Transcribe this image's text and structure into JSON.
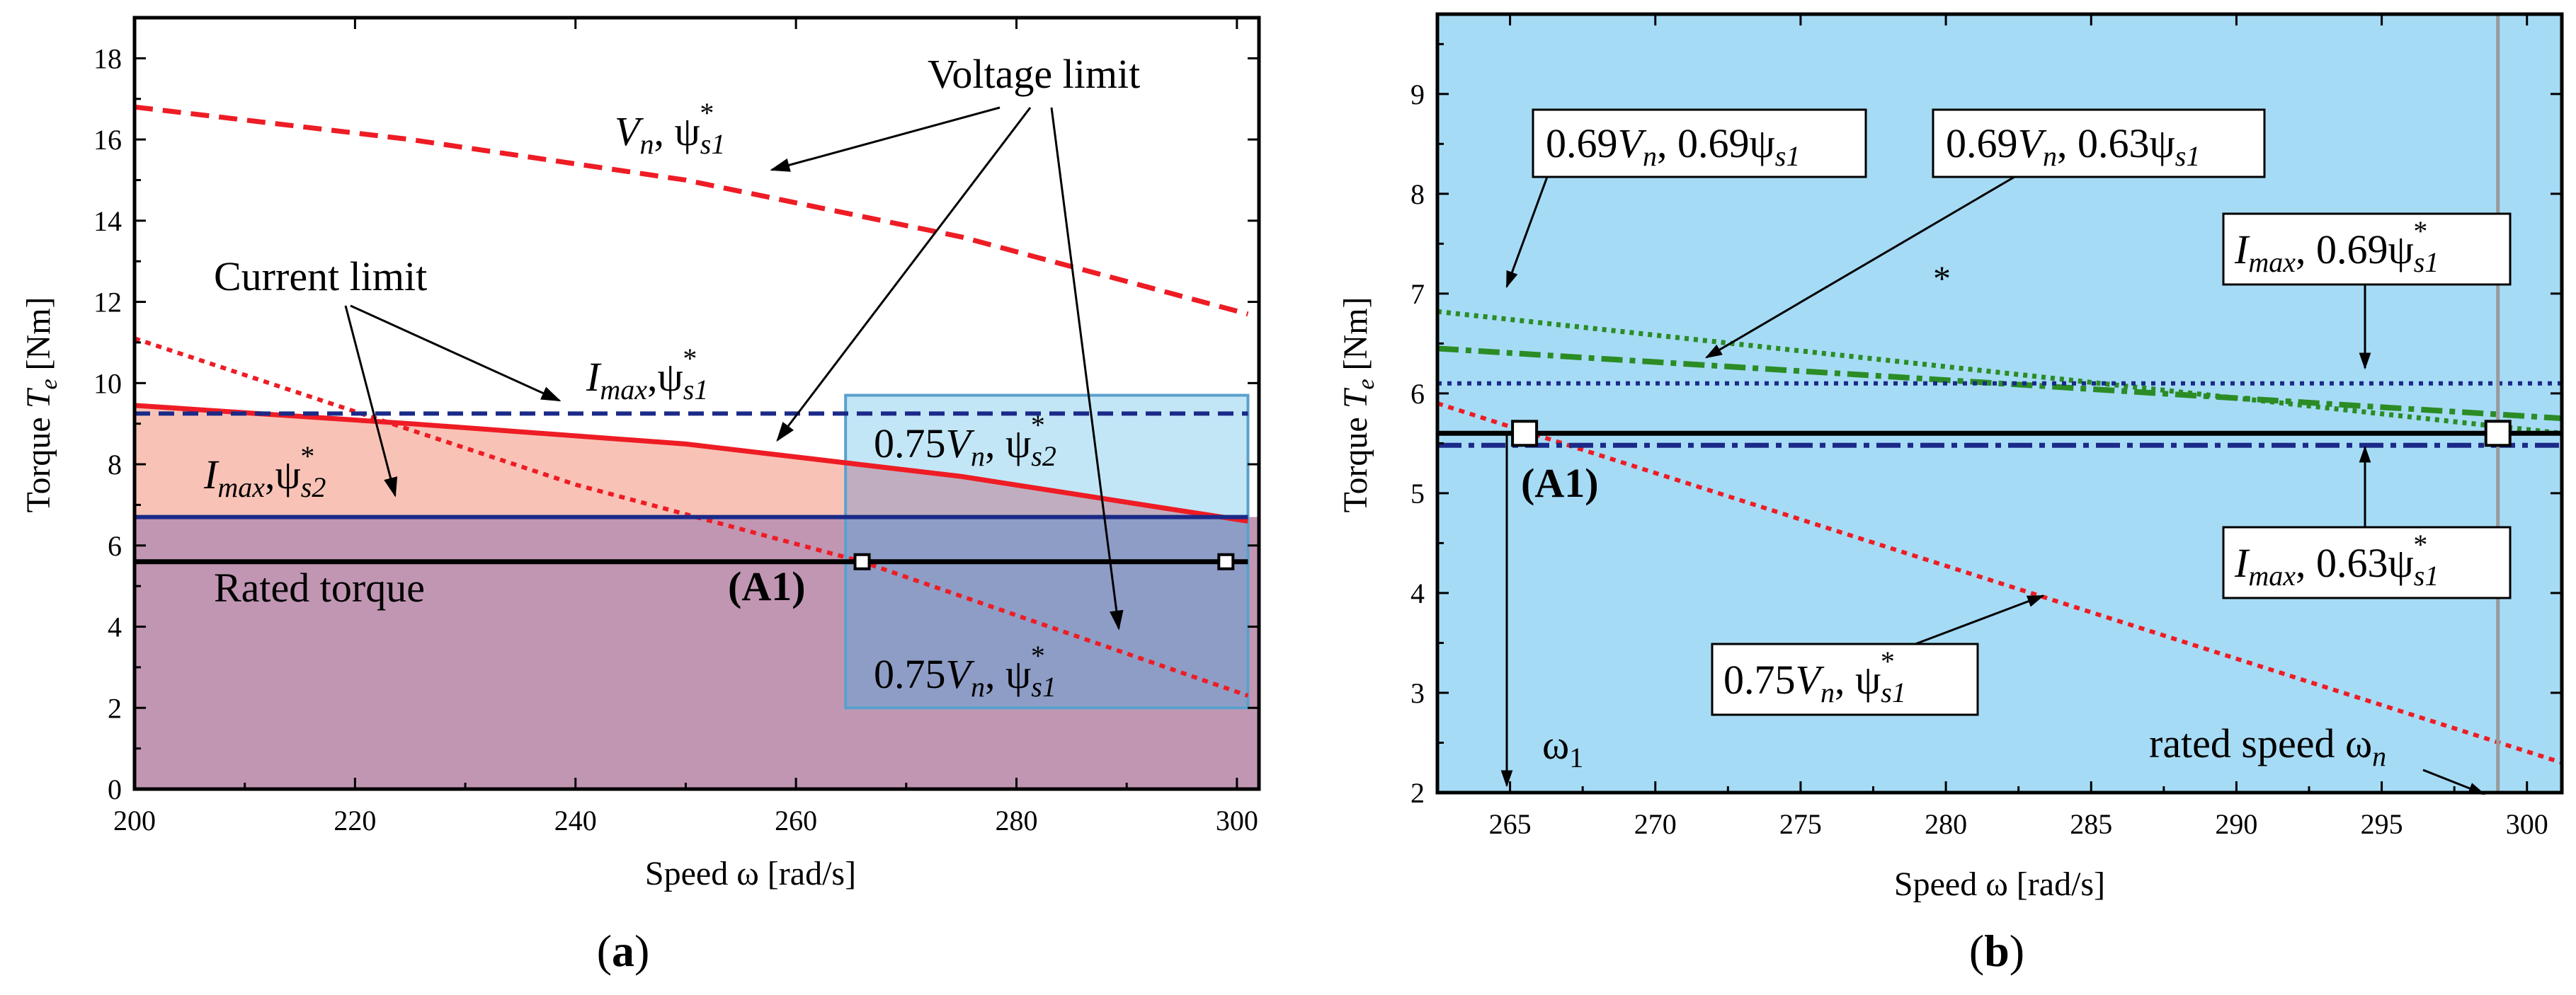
{
  "colors": {
    "panel_b_bg": "#a6dbf5",
    "fill_top": "#f8c3b6",
    "fill_bottom": "#c196b3",
    "inset_fill": "#8e9dc6",
    "inset_top_fill": "#c2e6f6",
    "inset_border": "#5aa1cd",
    "red": "#ee1c24",
    "navy": "#1b2a88",
    "green": "#2b8c25",
    "black": "#000000",
    "gray": "#9a9a9a"
  },
  "chart_data": [
    {
      "panel": "a",
      "panel_label": "(a)",
      "type": "line",
      "xlabel": "Speed ω [rad/s]",
      "ylabel": "Torque Te [Nm]",
      "xlim": [
        200,
        302
      ],
      "ylim": [
        0,
        19
      ],
      "xticks": [
        "200",
        "220",
        "240",
        "260",
        "280",
        "300"
      ],
      "yticks": [
        "0",
        "2",
        "4",
        "6",
        "8",
        "10",
        "12",
        "14",
        "16",
        "18"
      ],
      "series": [
        {
          "name": "Vn, ψs1*",
          "style": "red-dashed",
          "x": [
            200,
            225,
            250,
            275,
            301
          ],
          "y": [
            16.8,
            16.0,
            15.0,
            13.6,
            11.7
          ]
        },
        {
          "name": "0.75Vn, ψs1*",
          "style": "red-dotted",
          "x": [
            200,
            240,
            266,
            301
          ],
          "y": [
            11.1,
            7.5,
            5.6,
            2.3
          ]
        },
        {
          "name": "0.75Vn, ψs2*",
          "style": "red-solid",
          "x": [
            200,
            225,
            250,
            275,
            301
          ],
          "y": [
            9.45,
            9.0,
            8.5,
            7.7,
            6.6
          ]
        },
        {
          "name": "Imax, ψs1*",
          "style": "navy-dashed",
          "x": [
            200,
            301
          ],
          "y": [
            9.25,
            9.25
          ]
        },
        {
          "name": "Imax, ψs2*",
          "style": "navy-solid",
          "x": [
            200,
            301
          ],
          "y": [
            6.7,
            6.7
          ]
        },
        {
          "name": "Rated torque",
          "style": "black-solid",
          "x": [
            200,
            301
          ],
          "y": [
            5.6,
            5.6
          ]
        }
      ],
      "points": [
        {
          "name": "A1",
          "x": 266,
          "y": 5.6
        },
        {
          "name": "rated",
          "x": 299,
          "y": 5.6
        }
      ],
      "inset_box": {
        "x": [
          264.5,
          301
        ],
        "y": [
          2.0,
          9.7
        ]
      },
      "annotations": {
        "voltage_limit": "Voltage limit",
        "current_limit": "Current limit",
        "rated_torque": "Rated torque",
        "a1": "(A1)",
        "vn_psi1": {
          "main": "V",
          "sub": "n",
          "mid": ", ψ",
          "sub2": "s1",
          "sup": "*"
        },
        "imax_psi1": {
          "main": "I",
          "sub": "max",
          "mid": ",ψ",
          "sub2": "s1",
          "sup": "*"
        },
        "imax_psi2": {
          "main": "I",
          "sub": "max",
          "mid": ",ψ",
          "sub2": "s2",
          "sup": "*"
        },
        "v075_psi2": {
          "pre": "0.75",
          "main": "V",
          "sub": "n",
          "mid": ", ψ",
          "sub2": "s2",
          "sup": "*"
        },
        "v075_psi1": {
          "pre": "0.75",
          "main": "V",
          "sub": "n",
          "mid": ", ψ",
          "sub2": "s1",
          "sup": "*"
        }
      }
    },
    {
      "panel": "b",
      "panel_label": "(b)",
      "type": "line",
      "xlabel": "Speed ω [rad/s]",
      "ylabel": "Torque Te [Nm]",
      "xlim": [
        262.5,
        301.2
      ],
      "ylim": [
        2,
        9.8
      ],
      "xticks": [
        "265",
        "270",
        "275",
        "280",
        "285",
        "290",
        "295",
        "300"
      ],
      "yticks": [
        "2",
        "3",
        "4",
        "5",
        "6",
        "7",
        "8",
        "9"
      ],
      "series": [
        {
          "name": "0.75Vn, ψs1*",
          "style": "red-dotted",
          "x": [
            262.5,
            301.2
          ],
          "y": [
            5.9,
            2.3
          ]
        },
        {
          "name": "0.69Vn, 0.69ψs1",
          "style": "green-dotted",
          "x": [
            262.5,
            301.2
          ],
          "y": [
            6.82,
            5.6
          ]
        },
        {
          "name": "0.69Vn, 0.63ψs1",
          "style": "green-dashdot",
          "x": [
            262.5,
            301.2
          ],
          "y": [
            6.45,
            5.75
          ]
        },
        {
          "name": "Imax, 0.69ψs1*",
          "style": "navy-dotted",
          "x": [
            262.5,
            301.2
          ],
          "y": [
            6.1,
            6.1
          ]
        },
        {
          "name": "Imax, 0.63ψs1*",
          "style": "navy-dashdot",
          "x": [
            262.5,
            301.2
          ],
          "y": [
            5.48,
            5.48
          ]
        },
        {
          "name": "Rated torque",
          "style": "black-solid",
          "x": [
            262.5,
            301.2
          ],
          "y": [
            5.6,
            5.6
          ]
        },
        {
          "name": "rated speed",
          "style": "gray-vertical",
          "x": [
            299,
            299
          ],
          "y": [
            2,
            9.8
          ]
        }
      ],
      "points": [
        {
          "name": "A1",
          "x": 265.5,
          "y": 5.6
        },
        {
          "name": "rated",
          "x": 299,
          "y": 5.6
        }
      ],
      "annotations": {
        "a1": "(A1)",
        "omega1": {
          "main": "ω",
          "sub": "1"
        },
        "rated_speed": {
          "main": "rated speed ω",
          "sub": "n"
        },
        "asterisk": "*",
        "box1": {
          "pre": "0.69",
          "main": "V",
          "sub": "n",
          "mid": ", 0.69ψ",
          "sub2": "s1"
        },
        "box2": {
          "pre": "0.69",
          "main": "V",
          "sub": "n",
          "mid": ", 0.63ψ",
          "sub2": "s1"
        },
        "box3": {
          "main": "I",
          "sub": "max",
          "mid": ", 0.69ψ",
          "sub2": "s1",
          "sup": "*"
        },
        "box4": {
          "main": "I",
          "sub": "max",
          "mid": ", 0.63ψ",
          "sub2": "s1",
          "sup": "*"
        },
        "box5": {
          "pre": "0.75",
          "main": "V",
          "sub": "n",
          "mid": ", ψ",
          "sub2": "s1",
          "sup": "*"
        }
      }
    }
  ]
}
